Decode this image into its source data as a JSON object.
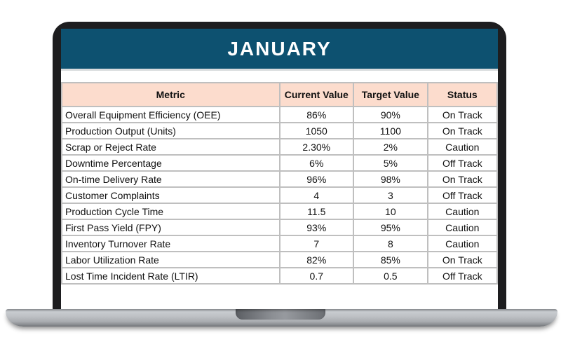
{
  "screen": {
    "title": "JANUARY"
  },
  "colors": {
    "title_bar": "#0d5170",
    "header_bg": "#fcdccd",
    "gridline": "#bfbfbf",
    "bezel": "#1d1d1f"
  },
  "table": {
    "headers": [
      "Metric",
      "Current Value",
      "Target Value",
      "Status"
    ],
    "rows": [
      {
        "metric": "Overall Equipment Efficiency (OEE)",
        "current": "86%",
        "target": "90%",
        "status": "On Track"
      },
      {
        "metric": "Production Output (Units)",
        "current": "1050",
        "target": "1100",
        "status": "On Track"
      },
      {
        "metric": "Scrap or Reject Rate",
        "current": "2.30%",
        "target": "2%",
        "status": "Caution"
      },
      {
        "metric": "Downtime Percentage",
        "current": "6%",
        "target": "5%",
        "status": "Off Track"
      },
      {
        "metric": "On-time Delivery Rate",
        "current": "96%",
        "target": "98%",
        "status": "On Track"
      },
      {
        "metric": "Customer Complaints",
        "current": "4",
        "target": "3",
        "status": "Off Track"
      },
      {
        "metric": "Production Cycle Time",
        "current": "11.5",
        "target": "10",
        "status": "Caution"
      },
      {
        "metric": "First Pass Yield (FPY)",
        "current": "93%",
        "target": "95%",
        "status": "Caution"
      },
      {
        "metric": "Inventory Turnover Rate",
        "current": "7",
        "target": "8",
        "status": "Caution"
      },
      {
        "metric": "Labor Utilization Rate",
        "current": "82%",
        "target": "85%",
        "status": "On Track"
      },
      {
        "metric": "Lost Time Incident Rate (LTIR)",
        "current": "0.7",
        "target": "0.5",
        "status": "Off Track"
      }
    ]
  }
}
